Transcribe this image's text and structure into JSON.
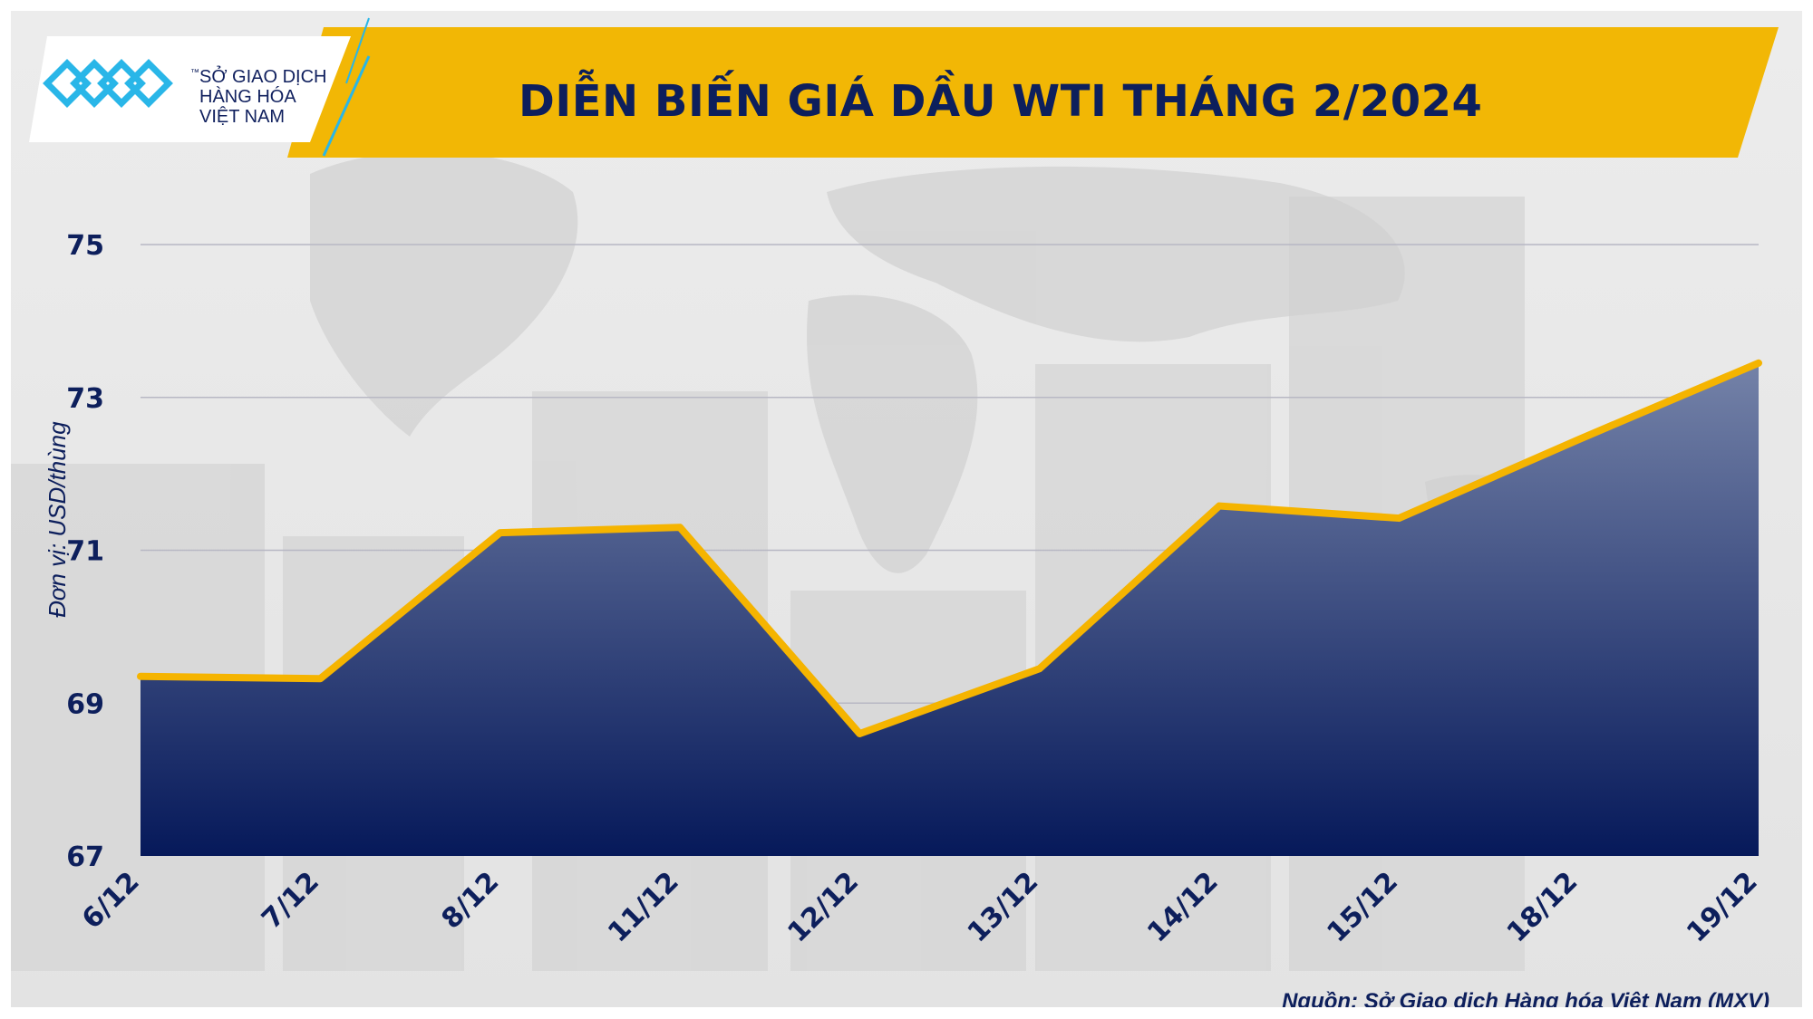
{
  "header": {
    "title": "DIỄN BIẾN GIÁ DẦU WTI THÁNG 2/2024",
    "logo_line1": "SỞ GIAO DỊCH",
    "logo_line2": "HÀNG HÓA",
    "logo_line3": "VIỆT NAM",
    "logo_tm": "™"
  },
  "colors": {
    "banner": "#f2b705",
    "line": "#f5b400",
    "area_top": "#7482a8",
    "area_bottom": "#06195a",
    "text": "#0d1f5c",
    "grid": "#b8b8c4"
  },
  "footer": {
    "source": "Nguồn: Sở Giao dịch Hàng hóa Việt Nam (MXV)"
  },
  "chart_data": {
    "type": "area",
    "title": "DIỄN BIẾN GIÁ DẦU WTI THÁNG 2/2024",
    "ylabel": "Đơn vị: USD/thùng",
    "xlabel": "",
    "categories": [
      "6/12",
      "7/12",
      "8/12",
      "11/12",
      "12/12",
      "13/12",
      "14/12",
      "15/12",
      "18/12",
      "19/12"
    ],
    "series": [
      {
        "values": [
          69.35,
          69.32,
          71.23,
          71.3,
          68.6,
          69.45,
          71.58,
          71.42,
          72.45,
          73.45
        ]
      }
    ],
    "ylim": [
      67,
      75
    ],
    "yticks": [
      67,
      69,
      71,
      73,
      75
    ],
    "grid": true,
    "legend": "none"
  }
}
